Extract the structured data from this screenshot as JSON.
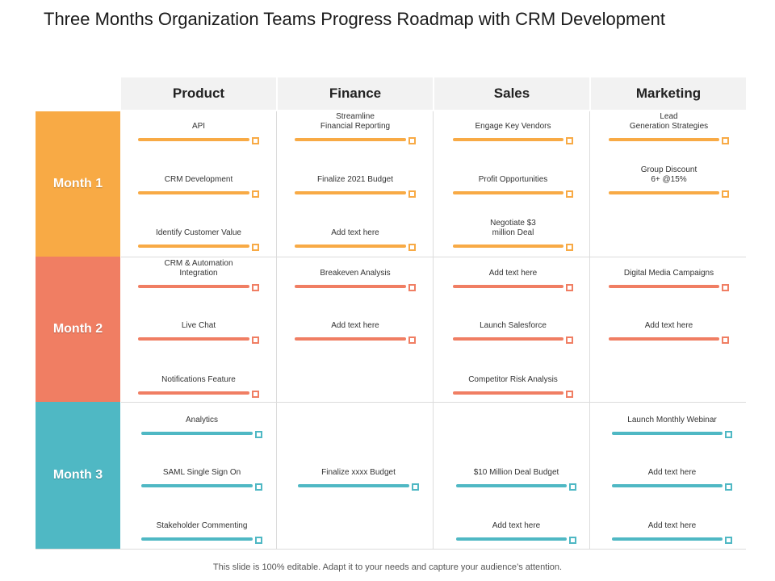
{
  "title": "Three Months Organization Teams Progress Roadmap with CRM Development",
  "columns": [
    "Product",
    "Finance",
    "Sales",
    "Marketing"
  ],
  "colors": {
    "month1": "#f8aa45",
    "month2": "#f07e63",
    "month3": "#4fb8c4"
  },
  "months": [
    {
      "label": "Month 1",
      "cells": [
        [
          "API",
          "CRM  Development",
          "Identify Customer Value"
        ],
        [
          "Streamline\nFinancial Reporting",
          "Finalize 2021 Budget",
          "Add text here"
        ],
        [
          "Engage Key Vendors",
          "Profit Opportunities",
          "Negotiate $3\nmillion  Deal"
        ],
        [
          "Lead\nGeneration Strategies",
          "Group Discount\n6+ @15%",
          ""
        ]
      ]
    },
    {
      "label": "Month 2",
      "cells": [
        [
          "CRM  & Automation\nIntegration",
          "Live Chat",
          "Notifications Feature"
        ],
        [
          "Breakeven Analysis",
          "Add text here",
          ""
        ],
        [
          "Add text here",
          "Launch Salesforce",
          "Competitor Risk Analysis"
        ],
        [
          "Digital Media Campaigns",
          "Add text here",
          ""
        ]
      ]
    },
    {
      "label": "Month 3",
      "cells": [
        [
          "Analytics",
          "SAML Single Sign On",
          "Stakeholder Commenting"
        ],
        [
          "",
          "Finalize xxxx Budget",
          ""
        ],
        [
          "",
          "$10 Million Deal Budget",
          "Add text here"
        ],
        [
          "Launch Monthly Webinar",
          "Add text here",
          "Add text here"
        ]
      ]
    }
  ],
  "footer": "This slide is 100% editable. Adapt it to your needs and capture your audience’s attention."
}
